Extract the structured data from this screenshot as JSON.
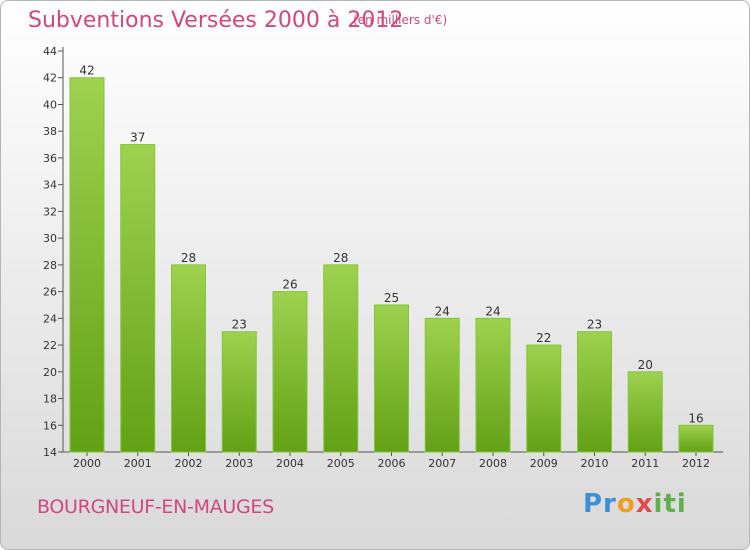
{
  "header": {
    "title": "Subventions Versées 2000 à 2012",
    "unit": "(en milliers d'€)"
  },
  "footer": {
    "place": "BOURGNEUF-EN-MAUGES",
    "logo": {
      "p1": "Pr",
      "p2": "o",
      "p3": "x",
      "p4": "iti"
    }
  },
  "colors": {
    "accent": "#d2477e",
    "bar_top": "#9ed24f",
    "bar_bottom": "#62a115"
  },
  "chart_data": {
    "type": "bar",
    "title": "Subventions Versées 2000 à 2012",
    "subtitle": "(en milliers d'€)",
    "categories": [
      "2000",
      "2001",
      "2002",
      "2003",
      "2004",
      "2005",
      "2006",
      "2007",
      "2008",
      "2009",
      "2010",
      "2011",
      "2012"
    ],
    "values": [
      42,
      37,
      28,
      23,
      26,
      28,
      25,
      24,
      24,
      22,
      23,
      20,
      16
    ],
    "ylim": [
      14,
      44
    ],
    "yticks": [
      "14",
      "16",
      "18",
      "20",
      "22",
      "24",
      "26",
      "28",
      "30",
      "32",
      "34",
      "36",
      "38",
      "40",
      "42",
      "44"
    ],
    "grid": false,
    "data_labels": true
  }
}
